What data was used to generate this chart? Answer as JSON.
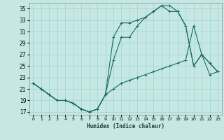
{
  "xlabel": "Humidex (Indice chaleur)",
  "bg_color": "#c5e8e5",
  "grid_color": "#a8d5d0",
  "line_color": "#1a6b60",
  "xlim": [
    -0.5,
    23.5
  ],
  "ylim": [
    16.5,
    36
  ],
  "yticks": [
    17,
    19,
    21,
    23,
    25,
    27,
    29,
    31,
    33,
    35
  ],
  "xticks": [
    0,
    1,
    2,
    3,
    4,
    5,
    6,
    7,
    8,
    9,
    10,
    11,
    12,
    13,
    14,
    15,
    16,
    17,
    18,
    19,
    20,
    21,
    22,
    23
  ],
  "line1_x": [
    0,
    1,
    2,
    3,
    4,
    5,
    6,
    7,
    8,
    9,
    10,
    11,
    12,
    13,
    14,
    15,
    16,
    17,
    18,
    19,
    20,
    21,
    22,
    23
  ],
  "line1_y": [
    22,
    21,
    20,
    19,
    19,
    18.5,
    17.5,
    17,
    17.5,
    20,
    30,
    32.5,
    32.5,
    33,
    33.5,
    34.5,
    35.5,
    35.5,
    34.5,
    32,
    25,
    27,
    25.5,
    24
  ],
  "line2_x": [
    0,
    1,
    2,
    3,
    4,
    5,
    6,
    7,
    8,
    9,
    10,
    11,
    12,
    13,
    14,
    15,
    16,
    17,
    18,
    19,
    20,
    21,
    22,
    23
  ],
  "line2_y": [
    22,
    21,
    20,
    19,
    19,
    18.5,
    17.5,
    17,
    17.5,
    20,
    26,
    30,
    30,
    32,
    33.5,
    34.5,
    35.5,
    34.5,
    34.5,
    32,
    25,
    27,
    25.5,
    24
  ],
  "line3_x": [
    0,
    1,
    2,
    3,
    4,
    5,
    6,
    7,
    8,
    9,
    10,
    11,
    12,
    13,
    14,
    15,
    16,
    17,
    18,
    19,
    20,
    21,
    22,
    23
  ],
  "line3_y": [
    22,
    21,
    20,
    19,
    19,
    18.5,
    17.5,
    17,
    17.5,
    20,
    21,
    22,
    22.5,
    23,
    23.5,
    24,
    24.5,
    25,
    25.5,
    26,
    32,
    27,
    23.5,
    24
  ]
}
